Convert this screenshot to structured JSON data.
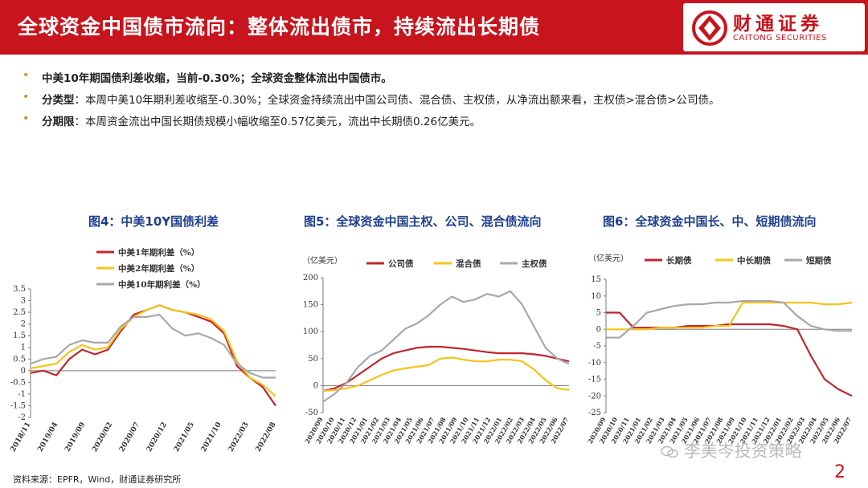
{
  "header": {
    "title": "全球资金中国债市流向：整体流出债市，持续流出长期债",
    "logo_cn": "财通证券",
    "logo_en": "CAITONG SECURITIES"
  },
  "colors": {
    "brand_red": "#c8141d",
    "bullet_orange": "#e38a27",
    "chart_title_blue": "#1f3f8f",
    "series_red": "#c0262d",
    "series_yellow": "#f7c31a",
    "series_gray": "#a8a8a8"
  },
  "bullets": [
    {
      "bold": "中美10年期国债利差收缩，当前-0.30%；全球资金整体流出中国债市。",
      "text": ""
    },
    {
      "bold": "分类型",
      "text": "：本周中美10年期利差收缩至-0.30%；全球资金持续流出中国公司债、混合债、主权债，从净流出额来看，主权债>混合债>公司债。"
    },
    {
      "bold": "分期限",
      "text": "：本周资金流出中国长期债规模小幅收缩至0.57亿美元，流出中长期债0.26亿美元。"
    }
  ],
  "bullet_glyph": "•",
  "chart_data": [
    {
      "type": "line",
      "title": "图4：中美10Y国债利差",
      "unit": "",
      "x": [
        "2018/11",
        "2019/01",
        "2019/04",
        "2019/07",
        "2019/09",
        "2019/12",
        "2020/02",
        "2020/05",
        "2020/07",
        "2020/10",
        "2020/12",
        "2021/03",
        "2021/05",
        "2021/08",
        "2021/10",
        "2022/01",
        "2022/03",
        "2022/05",
        "2022/06",
        "2022/08"
      ],
      "x_ticks": [
        "2018/11",
        "2019/04",
        "2019/09",
        "2020/02",
        "2020/07",
        "2020/12",
        "2021/05",
        "2021/10",
        "2022/03",
        "2022/08"
      ],
      "series": [
        {
          "name": "中美1年期利差（%）",
          "values": [
            -0.1,
            0.0,
            -0.2,
            0.5,
            0.9,
            0.7,
            0.9,
            1.7,
            2.4,
            2.6,
            2.8,
            2.6,
            2.5,
            2.3,
            2.1,
            1.6,
            0.2,
            -0.3,
            -0.7,
            -1.5
          ]
        },
        {
          "name": "中美2年期利差（%）",
          "values": [
            0.1,
            0.2,
            0.3,
            0.8,
            1.1,
            0.9,
            1.0,
            1.8,
            2.3,
            2.6,
            2.8,
            2.6,
            2.5,
            2.4,
            2.2,
            1.7,
            0.4,
            -0.3,
            -0.6,
            -1.1
          ]
        },
        {
          "name": "中美10年期利差（%）",
          "values": [
            0.3,
            0.5,
            0.6,
            1.1,
            1.3,
            1.2,
            1.2,
            1.9,
            2.3,
            2.3,
            2.4,
            1.8,
            1.5,
            1.6,
            1.4,
            1.1,
            0.3,
            -0.1,
            -0.3,
            -0.3
          ]
        }
      ],
      "ylim": [
        -2,
        3.5
      ],
      "y_ticks": [
        "3.5",
        "3",
        "2.5",
        "2",
        "1.5",
        "1",
        "0.5",
        "0",
        "-0.5",
        "-1",
        "-1.5",
        "-2"
      ]
    },
    {
      "type": "line",
      "title": "图5：全球资金中国主权、公司、混合债流向",
      "unit": "（亿美元）",
      "x": [
        "2020/09",
        "2020/10",
        "2020/11",
        "2021/01",
        "2021/02",
        "2021/03",
        "2021/04",
        "2021/05",
        "2021/06",
        "2021/07",
        "2021/08",
        "2021/09",
        "2021/10",
        "2021/11",
        "2021/12",
        "2022/01",
        "2022/02",
        "2022/03",
        "2022/04",
        "2022/05",
        "2022/06",
        "2022/07"
      ],
      "x_ticks": [
        "2020/09",
        "2020/10",
        "2020/11",
        "2020/12",
        "2021/01",
        "2021/02",
        "2021/03",
        "2021/04",
        "2021/05",
        "2021/06",
        "2021/07",
        "2021/08",
        "2021/09",
        "2021/10",
        "2021/11",
        "2021/12",
        "2022/01",
        "2022/02",
        "2022/03",
        "2022/04",
        "2022/05",
        "2022/06",
        "2022/07"
      ],
      "series": [
        {
          "name": "公司债",
          "values": [
            -10,
            -5,
            5,
            20,
            35,
            50,
            60,
            65,
            70,
            72,
            72,
            70,
            68,
            65,
            62,
            60,
            60,
            60,
            58,
            55,
            50,
            45
          ]
        },
        {
          "name": "混合债",
          "values": [
            -10,
            -8,
            -5,
            0,
            10,
            20,
            28,
            32,
            35,
            38,
            50,
            52,
            48,
            45,
            45,
            48,
            48,
            45,
            30,
            10,
            -5,
            -8
          ]
        },
        {
          "name": "主权债",
          "values": [
            -30,
            -15,
            5,
            35,
            55,
            65,
            85,
            105,
            115,
            130,
            150,
            165,
            155,
            160,
            170,
            165,
            175,
            150,
            110,
            70,
            50,
            40
          ]
        }
      ],
      "ylim": [
        -50,
        200
      ],
      "y_ticks": [
        "200",
        "150",
        "100",
        "50",
        "0",
        "-50"
      ]
    },
    {
      "type": "line",
      "title": "图6：全球资金中国长、中、短期债流向",
      "unit": "（亿美元）",
      "x": [
        "2020/09",
        "2020/10",
        "2020/11",
        "2021/01",
        "2021/03",
        "2021/04",
        "2021/06",
        "2021/08",
        "2021/09",
        "2021/10",
        "2021/11",
        "2021/12",
        "2022/01",
        "2022/02",
        "2022/03",
        "2022/04",
        "2022/05",
        "2022/06",
        "2022/07"
      ],
      "x_ticks": [
        "2020/09",
        "2020/10",
        "2020/11",
        "2021/01",
        "2021/02",
        "2021/03",
        "2021/04",
        "2021/05",
        "2021/06",
        "2021/07",
        "2021/08",
        "2021/09",
        "2021/10",
        "2021/11",
        "2021/12",
        "2022/01",
        "2022/02",
        "2022/03",
        "2022/04",
        "2022/05",
        "2022/06",
        "2022/07"
      ],
      "series": [
        {
          "name": "长期债",
          "values": [
            5,
            5,
            0.5,
            0.5,
            0.5,
            0.5,
            1,
            1,
            1,
            1.5,
            1.5,
            1.5,
            1.5,
            1,
            0,
            -8,
            -15,
            -18,
            -20
          ]
        },
        {
          "name": "中长期债",
          "values": [
            0,
            0,
            0,
            0,
            0.5,
            0.5,
            0.5,
            0.5,
            1,
            1,
            8,
            8,
            8,
            8,
            8,
            8,
            7.5,
            7.5,
            8
          ]
        },
        {
          "name": "短期债",
          "values": [
            -2.5,
            -2.5,
            1,
            5,
            6,
            7,
            7.5,
            7.5,
            8,
            8,
            8.5,
            8.5,
            8.5,
            8,
            4,
            1,
            0,
            -0.5,
            -0.5
          ]
        }
      ],
      "ylim": [
        -25,
        15
      ],
      "y_ticks": [
        "15",
        "10",
        "5",
        "0",
        "-5",
        "-10",
        "-15",
        "-20",
        "-25"
      ]
    }
  ],
  "footer": {
    "source": "资料来源：EPFR，Wind，财通证券研究所",
    "watermark": "李美岑投资策略",
    "page_number": "2"
  }
}
